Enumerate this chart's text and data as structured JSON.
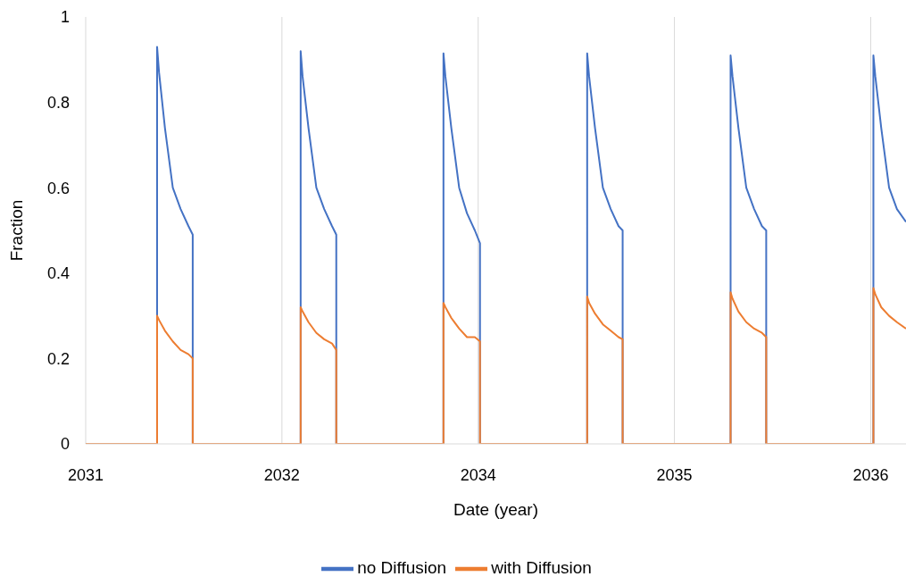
{
  "chart_data": {
    "type": "line",
    "xlabel": "Date (year)",
    "ylabel": "Fraction",
    "xlim": [
      2031,
      2036.434
    ],
    "xticks": [
      {
        "value": 2031,
        "label": "2031"
      },
      {
        "value": 2032.3,
        "label": "2032"
      },
      {
        "value": 2033.6,
        "label": "2034"
      },
      {
        "value": 2034.9,
        "label": "2035"
      },
      {
        "value": 2036.2,
        "label": "2036"
      }
    ],
    "ylim": [
      0,
      1
    ],
    "yticks": [
      0,
      0.2,
      0.4,
      0.6,
      0.8,
      1
    ],
    "grid": "x",
    "legend": "bottom",
    "marker": "none",
    "line_style": "solid",
    "series": [
      {
        "name": "no Diffusion",
        "color": "#4472c4",
        "x": [
          2031,
          2031.473,
          2031.473,
          2031.486,
          2031.525,
          2031.577,
          2031.629,
          2031.681,
          2031.709,
          2031.709,
          2032.424,
          2032.424,
          2032.437,
          2032.476,
          2032.528,
          2032.58,
          2032.632,
          2032.66,
          2032.66,
          2033.37,
          2033.37,
          2033.383,
          2033.422,
          2033.474,
          2033.526,
          2033.578,
          2033.612,
          2033.612,
          2034.322,
          2034.322,
          2034.335,
          2034.374,
          2034.426,
          2034.478,
          2034.53,
          2034.557,
          2034.557,
          2035.272,
          2035.272,
          2035.285,
          2035.324,
          2035.376,
          2035.428,
          2035.48,
          2035.508,
          2035.508,
          2036.218,
          2036.218,
          2036.231,
          2036.27,
          2036.322,
          2036.374,
          2036.434
        ],
        "values": [
          0,
          0,
          0.93,
          0.87,
          0.74,
          0.6,
          0.55,
          0.51,
          0.49,
          0,
          0,
          0.92,
          0.86,
          0.74,
          0.6,
          0.55,
          0.51,
          0.49,
          0,
          0,
          0.915,
          0.86,
          0.74,
          0.6,
          0.54,
          0.5,
          0.47,
          0,
          0,
          0.915,
          0.86,
          0.74,
          0.6,
          0.55,
          0.51,
          0.5,
          0,
          0,
          0.91,
          0.86,
          0.74,
          0.6,
          0.55,
          0.51,
          0.5,
          0,
          0,
          0.91,
          0.86,
          0.74,
          0.6,
          0.55,
          0.52
        ]
      },
      {
        "name": "with Diffusion",
        "color": "#ed7d31",
        "x": [
          2031,
          2031.473,
          2031.473,
          2031.486,
          2031.525,
          2031.577,
          2031.629,
          2031.681,
          2031.709,
          2031.709,
          2032.424,
          2032.424,
          2032.437,
          2032.476,
          2032.528,
          2032.58,
          2032.632,
          2032.66,
          2032.66,
          2033.37,
          2033.37,
          2033.383,
          2033.422,
          2033.474,
          2033.526,
          2033.578,
          2033.612,
          2033.612,
          2034.322,
          2034.322,
          2034.335,
          2034.374,
          2034.426,
          2034.478,
          2034.53,
          2034.557,
          2034.557,
          2035.272,
          2035.272,
          2035.285,
          2035.324,
          2035.376,
          2035.428,
          2035.48,
          2035.508,
          2035.508,
          2036.218,
          2036.218,
          2036.231,
          2036.27,
          2036.322,
          2036.374,
          2036.434
        ],
        "values": [
          0,
          0,
          0.3,
          0.29,
          0.265,
          0.24,
          0.22,
          0.21,
          0.2,
          0,
          0,
          0.32,
          0.31,
          0.285,
          0.26,
          0.245,
          0.235,
          0.22,
          0,
          0,
          0.33,
          0.32,
          0.295,
          0.27,
          0.25,
          0.25,
          0.24,
          0,
          0,
          0.345,
          0.33,
          0.305,
          0.28,
          0.265,
          0.25,
          0.245,
          0,
          0,
          0.355,
          0.34,
          0.31,
          0.285,
          0.27,
          0.26,
          0.25,
          0,
          0,
          0.365,
          0.35,
          0.32,
          0.3,
          0.285,
          0.27
        ]
      }
    ]
  }
}
